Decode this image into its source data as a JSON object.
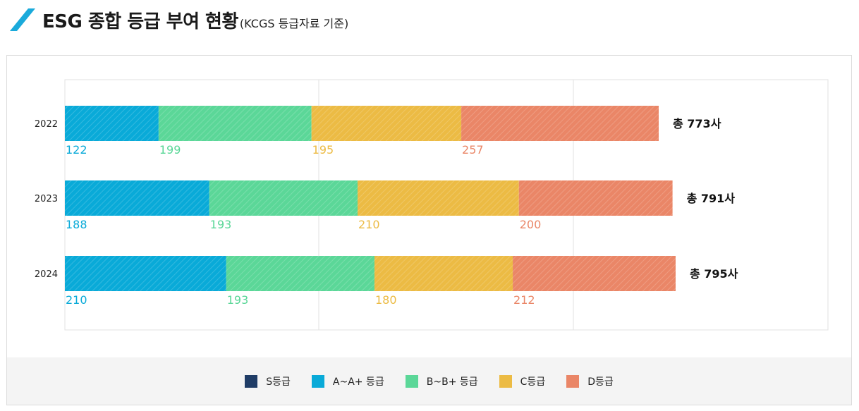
{
  "header": {
    "title": "ESG 종합 등급 부여 현황",
    "subtitle": "(KCGS 등급자료 기준)"
  },
  "colors": {
    "accent": "#1aaadb",
    "S": "#1f3c66",
    "A": "#09aad8",
    "B": "#5bd798",
    "C": "#ecbb44",
    "D": "#ea8667",
    "grid": "#e2e2e2"
  },
  "chart_data": {
    "type": "bar",
    "orientation": "horizontal",
    "stacked": true,
    "categories": [
      "2022",
      "2023",
      "2024"
    ],
    "series": [
      {
        "name": "S등급",
        "values": [
          0,
          0,
          0
        ],
        "color": "#1f3c66"
      },
      {
        "name": "A~A+ 등급",
        "values": [
          122,
          188,
          210
        ],
        "color": "#09aad8"
      },
      {
        "name": "B~B+ 등급",
        "values": [
          199,
          193,
          193
        ],
        "color": "#5bd798"
      },
      {
        "name": "C등급",
        "values": [
          195,
          210,
          180
        ],
        "color": "#ecbb44"
      },
      {
        "name": "D등급",
        "values": [
          257,
          200,
          212
        ],
        "color": "#ea8667"
      }
    ],
    "totals": [
      "총 773사",
      "총 791사",
      "총 795사"
    ],
    "xlim": [
      0,
      990
    ],
    "grid": true,
    "legend_position": "bottom"
  }
}
